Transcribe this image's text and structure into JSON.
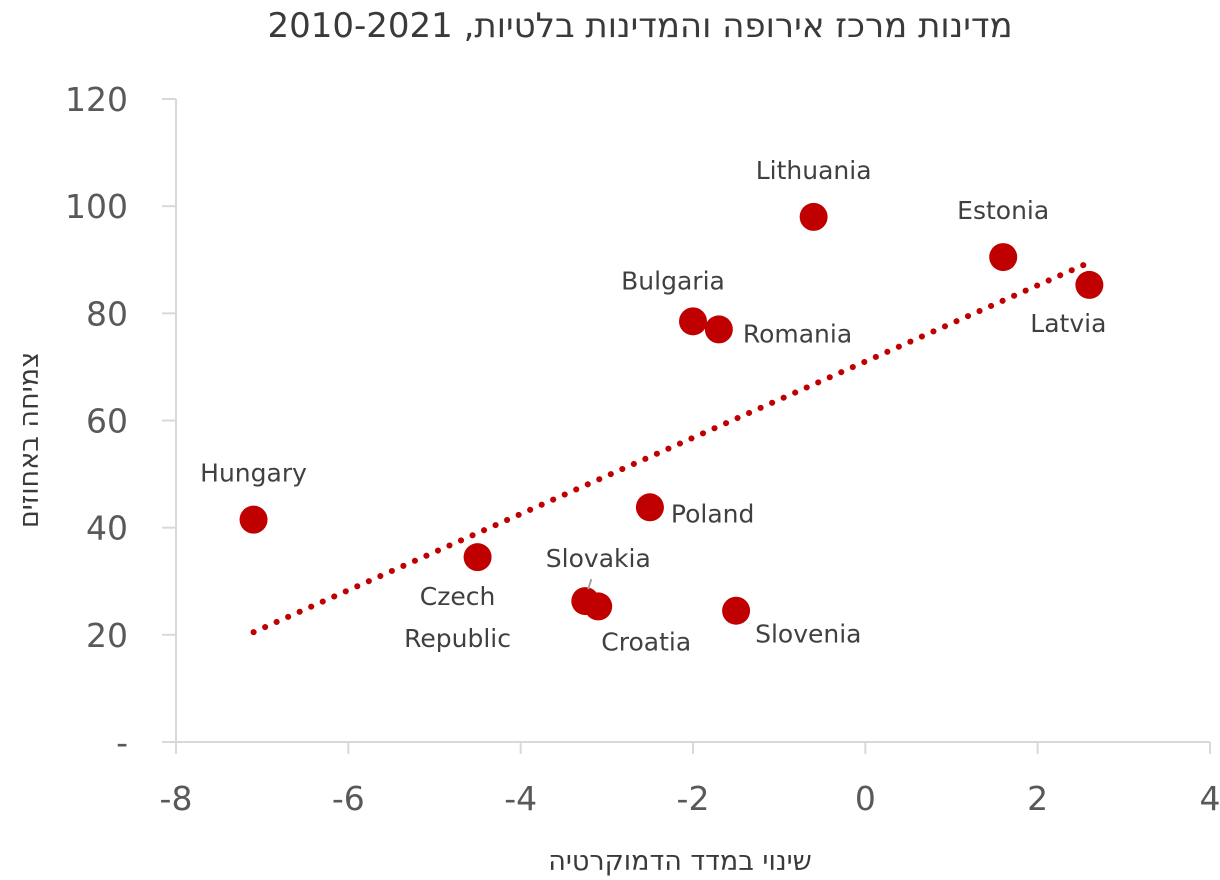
{
  "chart_data": {
    "type": "scatter",
    "title": "מדינות מרכז אירופה והמדינות בלטיות, 2010-2021",
    "xlabel": "שינוי במדד הדמוקרטיה",
    "ylabel": "צמיחה באחוזים",
    "xlim": [
      -8,
      4
    ],
    "ylim": [
      0,
      120
    ],
    "x_ticks": [
      "-8",
      "-6",
      "-4",
      "-2",
      "0",
      "2",
      "4"
    ],
    "y_ticks": [
      "-",
      "20",
      "40",
      "60",
      "80",
      "100",
      "120"
    ],
    "grid": false,
    "color": "#c00000",
    "points": [
      {
        "label": "Hungary",
        "x": -7.1,
        "y": 41.5
      },
      {
        "label": "Czech Republic",
        "x": -4.5,
        "y": 34.5
      },
      {
        "label": "Slovakia",
        "x": -3.25,
        "y": 26.3
      },
      {
        "label": "Croatia",
        "x": -3.1,
        "y": 25.3
      },
      {
        "label": "Poland",
        "x": -2.5,
        "y": 43.8
      },
      {
        "label": "Slovenia",
        "x": -1.5,
        "y": 24.5
      },
      {
        "label": "Bulgaria",
        "x": -2.0,
        "y": 78.5
      },
      {
        "label": "Romania",
        "x": -1.7,
        "y": 77.0
      },
      {
        "label": "Lithuania",
        "x": -0.6,
        "y": 98.0
      },
      {
        "label": "Estonia",
        "x": 1.6,
        "y": 90.5
      },
      {
        "label": "Latvia",
        "x": 2.6,
        "y": 85.3
      }
    ],
    "trendline": {
      "style": "dotted",
      "x": [
        -7.1,
        2.6
      ],
      "y": [
        20.5,
        89.5
      ]
    }
  }
}
